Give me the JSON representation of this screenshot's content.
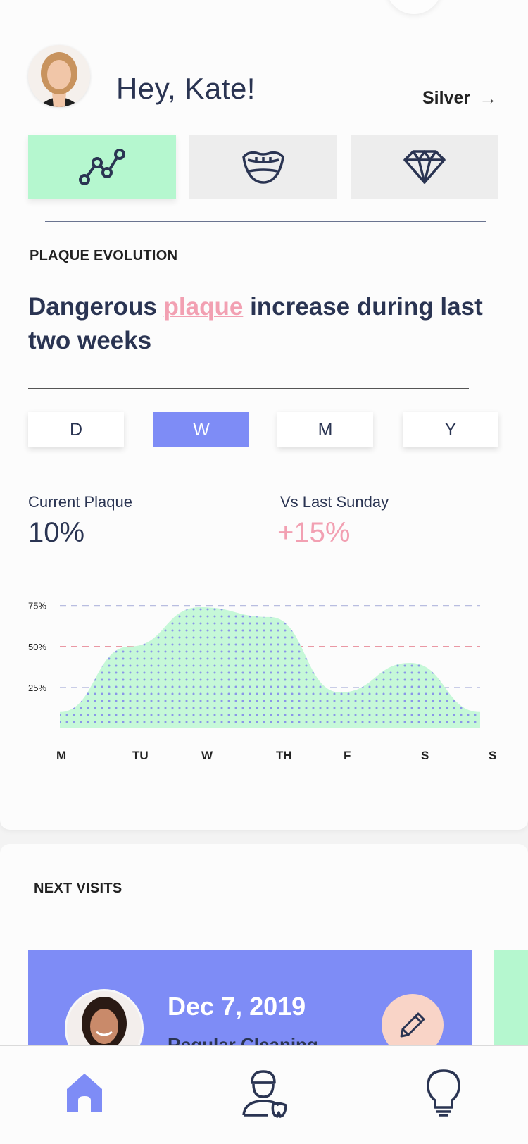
{
  "header": {
    "greeting": "Hey, Kate!",
    "tier": "Silver",
    "tier_arrow": "→"
  },
  "tabs": [
    {
      "name": "chart-icon",
      "active": true
    },
    {
      "name": "mouth-icon",
      "active": false
    },
    {
      "name": "diamond-icon",
      "active": false
    }
  ],
  "plaque": {
    "section_title": "PLAQUE EVOLUTION",
    "headline_pre": "Dangerous ",
    "headline_highlight": "plaque",
    "headline_post": " increase during last two weeks",
    "ranges": [
      "D",
      "W",
      "M",
      "Y"
    ],
    "active_range": "W",
    "current_label": "Current Plaque",
    "current_value": "10%",
    "vs_label": "Vs Last Sunday",
    "vs_value": "+15%"
  },
  "chart_data": {
    "type": "area",
    "x": [
      "M",
      "TU",
      "W",
      "TH",
      "F",
      "S",
      "S"
    ],
    "y_ticks": [
      "75%",
      "50%",
      "25%"
    ],
    "ylim": [
      0,
      80
    ],
    "series": [
      {
        "values": [
          10,
          50,
          74,
          68,
          22,
          40,
          10
        ]
      }
    ],
    "reference_lines": [
      75,
      50,
      25
    ]
  },
  "visits": {
    "section_title": "NEXT VISITS",
    "date": "Dec 7, 2019",
    "subtitle": "Regular Cleaning"
  },
  "nav": [
    "home-icon",
    "dentist-icon",
    "lightbulb-icon"
  ],
  "colors": {
    "navy": "#2a3452",
    "mint": "#b5f7cf",
    "periwinkle": "#7e8cf6",
    "pink": "#f2a0b2",
    "peach": "#f9d4c7"
  }
}
